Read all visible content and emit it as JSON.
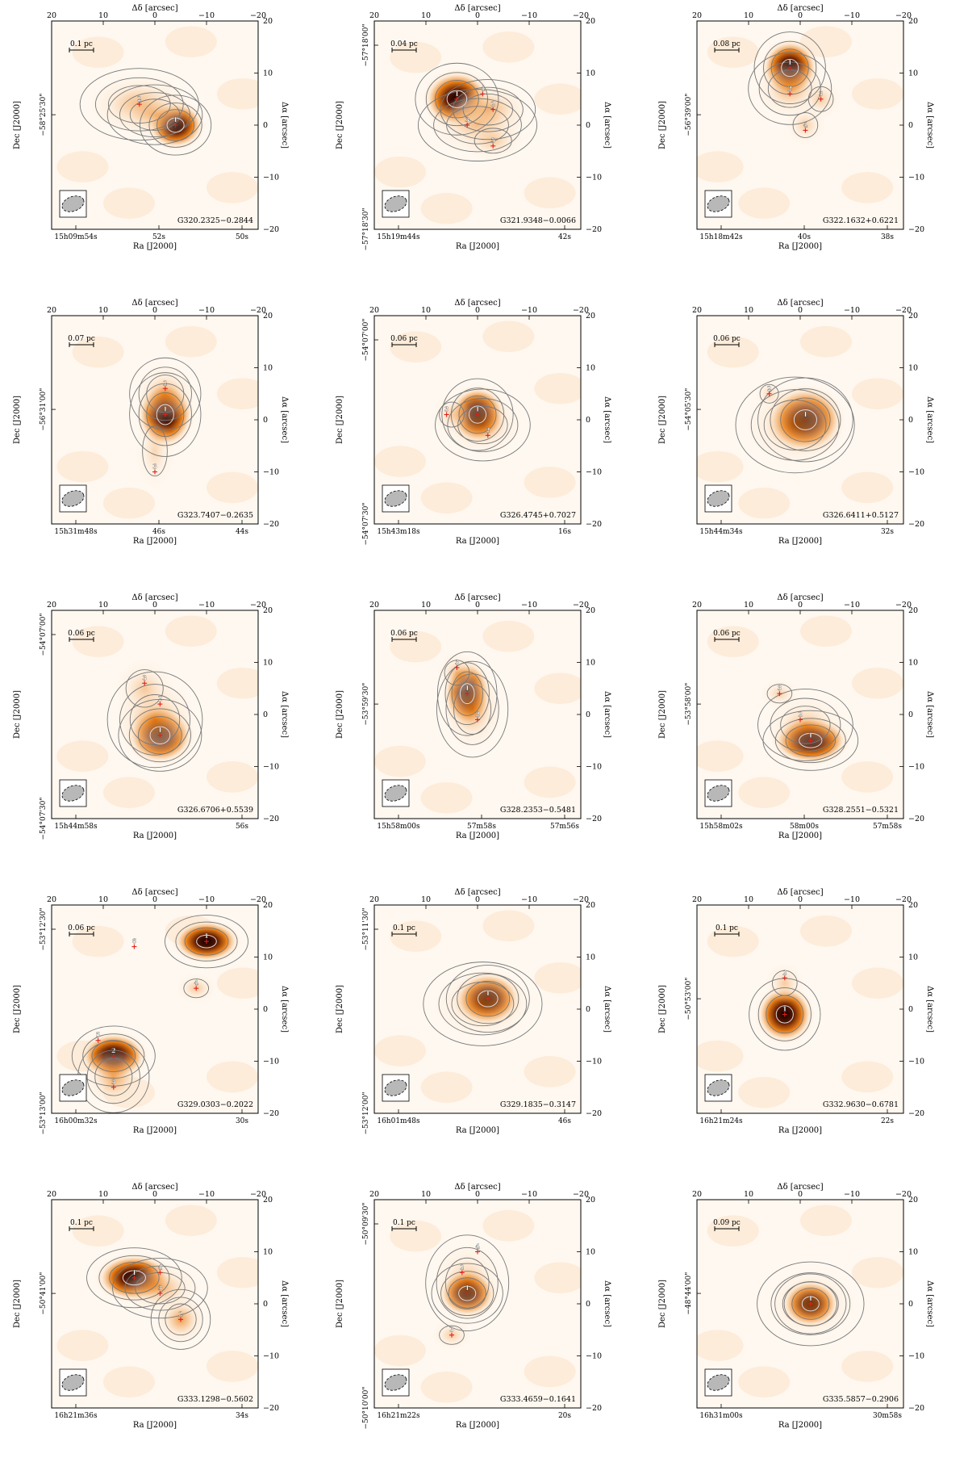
{
  "figure": {
    "axis_labels": {
      "top": "Δδ [arcsec]",
      "bottom": "Ra [J2000]",
      "left": "Dec [J2000]",
      "right": "Δα [arcsec]"
    },
    "offset_ticks_x": [
      "20",
      "10",
      "0",
      "−10",
      "−20"
    ],
    "offset_ticks_y": [
      "20",
      "10",
      "0",
      "−10",
      "−20"
    ],
    "colors": {
      "peak": "#0d0000",
      "mid": "#e8780c",
      "low": "#fbe2c6",
      "contour": "#777777",
      "marker": "#e0201a"
    },
    "panels": [
      {
        "name": "G320.2325−0.2844",
        "scale": "0.1 pc",
        "ra_ticks": [
          "15h09m54s",
          "52s",
          "50s"
        ],
        "dec_ticks": [
          "−58°25'30\""
        ],
        "sources": [
          {
            "id": "1",
            "dx": -4,
            "dy": 0
          },
          {
            "id": "2",
            "dx": 3,
            "dy": 4
          }
        ],
        "blobs": [
          {
            "dx": -4,
            "dy": 0,
            "sx": 3,
            "sy": 2.5,
            "a": 1
          },
          {
            "dx": 3,
            "dy": 4,
            "sx": 5,
            "sy": 3,
            "a": 0.55
          },
          {
            "dx": 0,
            "dy": 2,
            "sx": 4,
            "sy": 2.5,
            "a": 0.4
          }
        ]
      },
      {
        "name": "G321.9348−0.0066",
        "scale": "0.04 pc",
        "ra_ticks": [
          "15h19m44s",
          "42s"
        ],
        "dec_ticks": [
          "−57°18'00\"",
          "−57°18'30\""
        ],
        "sources": [
          {
            "id": "1",
            "dx": 4,
            "dy": 5
          },
          {
            "id": "2",
            "dx": -3,
            "dy": 3
          },
          {
            "id": "3",
            "dx": 2,
            "dy": 0
          },
          {
            "id": "4",
            "dx": -1,
            "dy": 6
          },
          {
            "id": "5",
            "dx": -3,
            "dy": -4
          }
        ],
        "blobs": [
          {
            "dx": 4,
            "dy": 5,
            "sx": 3.5,
            "sy": 3,
            "a": 1
          },
          {
            "dx": -2,
            "dy": 3,
            "sx": 4,
            "sy": 2.5,
            "a": 0.7
          },
          {
            "dx": 0,
            "dy": 0,
            "sx": 5,
            "sy": 3,
            "a": 0.4
          },
          {
            "dx": -3,
            "dy": -3,
            "sx": 3,
            "sy": 2,
            "a": 0.3
          }
        ]
      },
      {
        "name": "G322.1632+0.6221",
        "scale": "0.08 pc",
        "ra_ticks": [
          "15h18m42s",
          "40s",
          "38s"
        ],
        "dec_ticks": [
          "−56°39'00\""
        ],
        "sources": [
          {
            "id": "1",
            "dx": 2,
            "dy": 11
          },
          {
            "id": "2",
            "dx": 2,
            "dy": 6
          },
          {
            "id": "3",
            "dx": -4,
            "dy": 5
          },
          {
            "id": "4",
            "dx": -1,
            "dy": -1
          }
        ],
        "blobs": [
          {
            "dx": 2,
            "dy": 11,
            "sx": 3,
            "sy": 3,
            "a": 1
          },
          {
            "dx": 2,
            "dy": 7,
            "sx": 3.5,
            "sy": 3,
            "a": 0.55
          },
          {
            "dx": -4,
            "dy": 5,
            "sx": 2,
            "sy": 2,
            "a": 0.3
          },
          {
            "dx": -1,
            "dy": 0,
            "sx": 2,
            "sy": 2,
            "a": 0.3
          }
        ]
      },
      {
        "name": "G323.7407−0.2635",
        "scale": "0.07 pc",
        "ra_ticks": [
          "15h31m48s",
          "46s",
          "44s"
        ],
        "dec_ticks": [
          "−56°31'00\""
        ],
        "sources": [
          {
            "id": "1",
            "dx": -2,
            "dy": 1
          },
          {
            "id": "2",
            "dx": -2,
            "dy": 6
          },
          {
            "id": "3",
            "dx": 0,
            "dy": -10
          }
        ],
        "blobs": [
          {
            "dx": -2,
            "dy": 1,
            "sx": 3,
            "sy": 3.5,
            "a": 1
          },
          {
            "dx": -2,
            "dy": 5,
            "sx": 3,
            "sy": 3,
            "a": 0.5
          },
          {
            "dx": 0,
            "dy": -6,
            "sx": 2,
            "sy": 4,
            "a": 0.2
          }
        ]
      },
      {
        "name": "G326.4745+0.7027",
        "scale": "0.06 pc",
        "ra_ticks": [
          "15h43m18s",
          "16s"
        ],
        "dec_ticks": [
          "−54°07'00\"",
          "−54°07'30\""
        ],
        "sources": [
          {
            "id": "1",
            "dx": 0,
            "dy": 1
          },
          {
            "id": "2",
            "dx": -2,
            "dy": -3
          },
          {
            "id": "3",
            "dx": 6,
            "dy": 1
          }
        ],
        "blobs": [
          {
            "dx": 0,
            "dy": 1,
            "sx": 3,
            "sy": 3,
            "a": 1
          },
          {
            "dx": -1,
            "dy": -1,
            "sx": 4,
            "sy": 3,
            "a": 0.45
          },
          {
            "dx": 5,
            "dy": 1,
            "sx": 2,
            "sy": 2,
            "a": 0.25
          }
        ]
      },
      {
        "name": "G326.6411+0.5127",
        "scale": "0.06 pc",
        "ra_ticks": [
          "15h44m34s",
          "32s"
        ],
        "dec_ticks": [
          "−54°05'30\""
        ],
        "sources": [
          {
            "id": "1",
            "dx": -1,
            "dy": 0
          },
          {
            "id": "2",
            "dx": 6,
            "dy": 5
          }
        ],
        "blobs": [
          {
            "dx": -1,
            "dy": 0,
            "sx": 4,
            "sy": 3.5,
            "a": 1
          },
          {
            "dx": 1,
            "dy": -1,
            "sx": 5,
            "sy": 4,
            "a": 0.5
          },
          {
            "dx": 6,
            "dy": 5,
            "sx": 1.5,
            "sy": 1.5,
            "a": 0.2
          }
        ]
      },
      {
        "name": "G326.6706+0.5539",
        "scale": "0.06 pc",
        "ra_ticks": [
          "15h44m58s",
          "56s"
        ],
        "dec_ticks": [
          "−54°07'00\"",
          "−54°07'30\""
        ],
        "sources": [
          {
            "id": "1",
            "dx": -1,
            "dy": -4
          },
          {
            "id": "2",
            "dx": -1,
            "dy": 2
          },
          {
            "id": "3",
            "dx": 2,
            "dy": 6
          }
        ],
        "blobs": [
          {
            "dx": -1,
            "dy": -4,
            "sx": 3.5,
            "sy": 3,
            "a": 1
          },
          {
            "dx": 0,
            "dy": -1,
            "sx": 4,
            "sy": 4,
            "a": 0.65
          },
          {
            "dx": 2,
            "dy": 5,
            "sx": 3,
            "sy": 3,
            "a": 0.3
          }
        ]
      },
      {
        "name": "G328.2353−0.5481",
        "scale": "0.06 pc",
        "ra_ticks": [
          "15h58m00s",
          "57m58s",
          "57m56s"
        ],
        "dec_ticks": [
          "−53°59'30\""
        ],
        "sources": [
          {
            "id": "1",
            "dx": 2,
            "dy": 4
          },
          {
            "id": "2",
            "dx": 0,
            "dy": -1
          },
          {
            "id": "3",
            "dx": 4,
            "dy": 9
          }
        ],
        "blobs": [
          {
            "dx": 2,
            "dy": 4,
            "sx": 2.5,
            "sy": 3.5,
            "a": 1
          },
          {
            "dx": 1,
            "dy": 1,
            "sx": 3,
            "sy": 4,
            "a": 0.6
          },
          {
            "dx": 4,
            "dy": 8,
            "sx": 2,
            "sy": 2,
            "a": 0.35
          }
        ]
      },
      {
        "name": "G328.2551−0.5321",
        "scale": "0.06 pc",
        "ra_ticks": [
          "15h58m02s",
          "58m00s",
          "57m58s"
        ],
        "dec_ticks": [
          "−53°58'00\""
        ],
        "sources": [
          {
            "id": "1",
            "dx": -2,
            "dy": -5
          },
          {
            "id": "2",
            "dx": 0,
            "dy": -1
          },
          {
            "id": "3",
            "dx": 4,
            "dy": 4
          }
        ],
        "blobs": [
          {
            "dx": -2,
            "dy": -5,
            "sx": 4,
            "sy": 2.5,
            "a": 1
          },
          {
            "dx": -1,
            "dy": -2,
            "sx": 4,
            "sy": 3,
            "a": 0.4
          },
          {
            "dx": 4,
            "dy": 4,
            "sx": 2,
            "sy": 1.5,
            "a": 0.25
          }
        ]
      },
      {
        "name": "G329.0303−0.2022",
        "scale": "0.06 pc",
        "ra_ticks": [
          "16h00m32s",
          "30s"
        ],
        "dec_ticks": [
          "−53°12'30\"",
          "−53°13'00\""
        ],
        "sources": [
          {
            "id": "1",
            "dx": -10,
            "dy": 13
          },
          {
            "id": "2",
            "dx": 8,
            "dy": -9
          },
          {
            "id": "3",
            "dx": 8,
            "dy": -15
          },
          {
            "id": "4",
            "dx": -8,
            "dy": 4
          },
          {
            "id": "5",
            "dx": 11,
            "dy": -6
          },
          {
            "id": "6",
            "dx": 4,
            "dy": 12
          }
        ],
        "blobs": [
          {
            "dx": -10,
            "dy": 13,
            "sx": 3.5,
            "sy": 2.2,
            "a": 1
          },
          {
            "dx": 8,
            "dy": -9,
            "sx": 3.5,
            "sy": 2.5,
            "a": 1
          },
          {
            "dx": 8,
            "dy": -13,
            "sx": 3,
            "sy": 3,
            "a": 0.6
          },
          {
            "dx": -8,
            "dy": 4,
            "sx": 2,
            "sy": 1.5,
            "a": 0.35
          }
        ]
      },
      {
        "name": "G329.1835−0.3147",
        "scale": "0.1 pc",
        "ra_ticks": [
          "16h01m48s",
          "46s"
        ],
        "dec_ticks": [
          "−53°11'30\"",
          "−53°12'00\""
        ],
        "sources": [
          {
            "id": "1",
            "dx": -2,
            "dy": 2
          }
        ],
        "blobs": [
          {
            "dx": -2,
            "dy": 2,
            "sx": 3.5,
            "sy": 2.8,
            "a": 1
          },
          {
            "dx": -1,
            "dy": 1,
            "sx": 5,
            "sy": 3.5,
            "a": 0.45
          }
        ]
      },
      {
        "name": "G332.9630−0.6781",
        "scale": "0.1 pc",
        "ra_ticks": [
          "16h21m24s",
          "22s"
        ],
        "dec_ticks": [
          "−50°53'00\""
        ],
        "sources": [
          {
            "id": "1",
            "dx": 3,
            "dy": -1
          },
          {
            "id": "2",
            "dx": 3,
            "dy": 6
          }
        ],
        "blobs": [
          {
            "dx": 3,
            "dy": -1,
            "sx": 3,
            "sy": 3,
            "a": 1
          },
          {
            "dx": 3,
            "dy": 5,
            "sx": 2,
            "sy": 2,
            "a": 0.3
          }
        ]
      },
      {
        "name": "G333.1298−0.5602",
        "scale": "0.1 pc",
        "ra_ticks": [
          "16h21m36s",
          "34s"
        ],
        "dec_ticks": [
          "−50°41'00\""
        ],
        "sources": [
          {
            "id": "1",
            "dx": 4,
            "dy": 5
          },
          {
            "id": "2",
            "dx": -5,
            "dy": -3
          },
          {
            "id": "3",
            "dx": -1,
            "dy": 2
          },
          {
            "id": "4",
            "dx": -1,
            "dy": 6
          }
        ],
        "blobs": [
          {
            "dx": 4,
            "dy": 5,
            "sx": 4,
            "sy": 2.5,
            "a": 1
          },
          {
            "dx": -1,
            "dy": 3,
            "sx": 4,
            "sy": 2.5,
            "a": 0.55
          },
          {
            "dx": -5,
            "dy": -3,
            "sx": 2.5,
            "sy": 2.5,
            "a": 0.7
          }
        ]
      },
      {
        "name": "G333.4659−0.1641",
        "scale": "0.1 pc",
        "ra_ticks": [
          "16h21m22s",
          "20s"
        ],
        "dec_ticks": [
          "−50°09'30\"",
          "−50°10'00\""
        ],
        "sources": [
          {
            "id": "1",
            "dx": 2,
            "dy": 2
          },
          {
            "id": "2",
            "dx": 3,
            "dy": 6
          },
          {
            "id": "3",
            "dx": 5,
            "dy": -6
          },
          {
            "id": "4",
            "dx": 0,
            "dy": 10
          }
        ],
        "blobs": [
          {
            "dx": 2,
            "dy": 2,
            "sx": 3,
            "sy": 2.5,
            "a": 1
          },
          {
            "dx": 2,
            "dy": 4,
            "sx": 3.5,
            "sy": 4,
            "a": 0.45
          },
          {
            "dx": 5,
            "dy": -6,
            "sx": 2,
            "sy": 1.5,
            "a": 0.3
          }
        ]
      },
      {
        "name": "G335.5857−0.2906",
        "scale": "0.09 pc",
        "ra_ticks": [
          "16h31m00s",
          "30m58s"
        ],
        "dec_ticks": [
          "−48°44'00\""
        ],
        "sources": [
          {
            "id": "1",
            "dx": -2,
            "dy": 0
          }
        ],
        "blobs": [
          {
            "dx": -2,
            "dy": 0,
            "sx": 3,
            "sy": 2.5,
            "a": 1
          },
          {
            "dx": -2,
            "dy": 0,
            "sx": 4.5,
            "sy": 3.5,
            "a": 0.4
          }
        ]
      }
    ]
  }
}
